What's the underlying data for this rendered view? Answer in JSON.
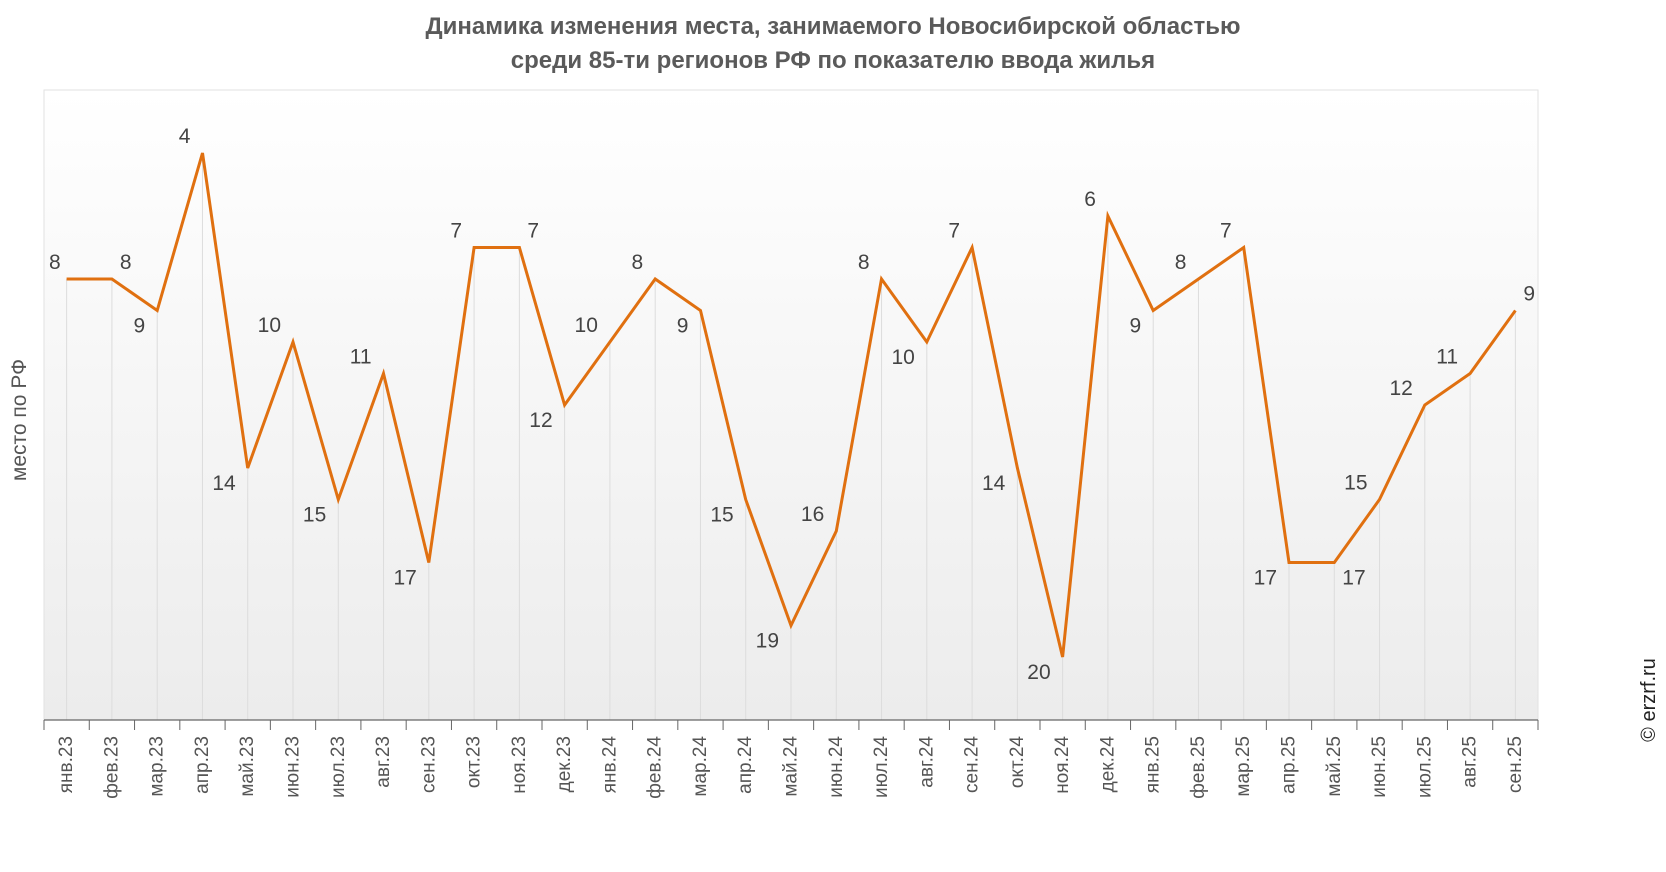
{
  "title_lines": [
    "Динамика изменения места, занимаемого Новосибирской областью",
    "среди 85-ти регионов РФ по показателю ввода жилья"
  ],
  "copyright": "© erzrf.ru",
  "colors": {
    "line": "#e07010",
    "grid": "#dcdcdc",
    "axis": "#666666"
  },
  "chart_data": {
    "type": "line",
    "title": "Динамика изменения места, занимаемого Новосибирской областью среди 85-ти регионов РФ по показателю ввода жилья",
    "xlabel": "",
    "ylabel": "место по РФ",
    "y_inverted": true,
    "ylim": [
      22,
      2
    ],
    "grid": "vertical",
    "categories": [
      "янв.23",
      "фев.23",
      "мар.23",
      "апр.23",
      "май.23",
      "июн.23",
      "июл.23",
      "авг.23",
      "сен.23",
      "окт.23",
      "ноя.23",
      "дек.23",
      "янв.24",
      "фев.24",
      "мар.24",
      "апр.24",
      "май.24",
      "июн.24",
      "июл.24",
      "авг.24",
      "сен.24",
      "окт.24",
      "ноя.24",
      "дек.24",
      "янв.25",
      "фев.25",
      "мар.25",
      "апр.25",
      "май.25",
      "июн.25",
      "июл.25",
      "авг.25",
      "сен.25"
    ],
    "series": [
      {
        "name": "",
        "values": [
          8,
          8,
          9,
          4,
          14,
          10,
          15,
          11,
          17,
          7,
          7,
          12,
          10,
          8,
          9,
          15,
          19,
          16,
          8,
          10,
          7,
          14,
          20,
          6,
          9,
          8,
          7,
          17,
          17,
          15,
          12,
          11,
          9
        ]
      }
    ]
  }
}
